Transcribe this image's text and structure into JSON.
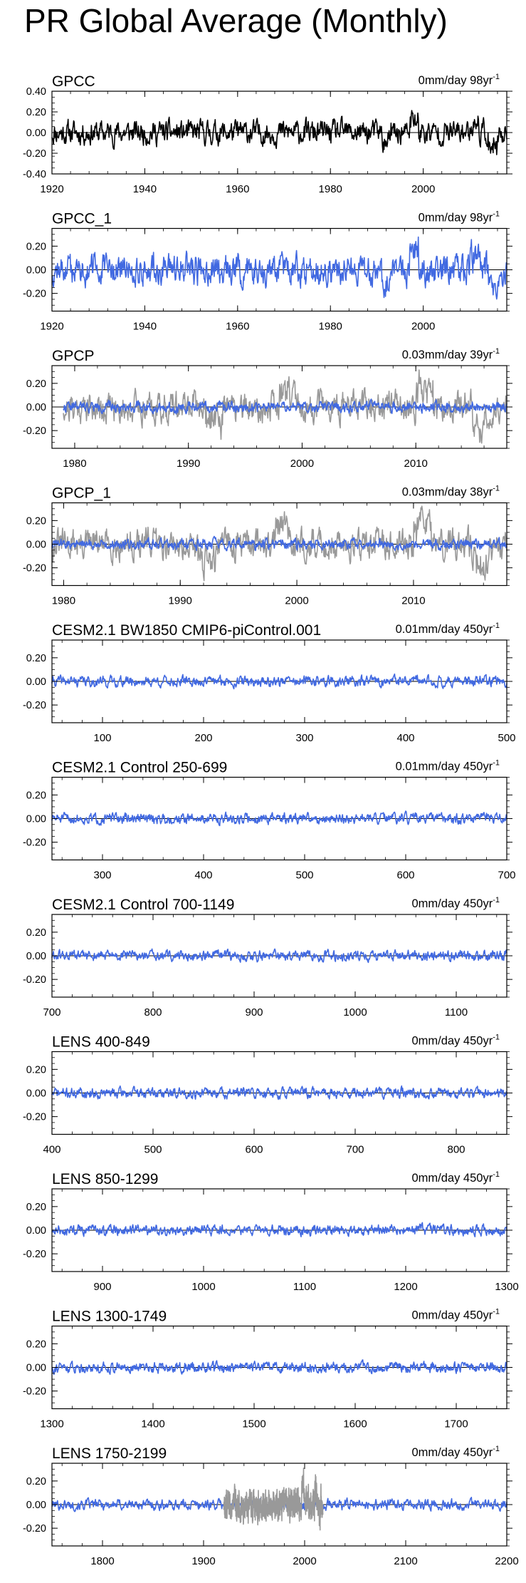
{
  "page": {
    "title": "PR Global Average (Monthly)"
  },
  "colors": {
    "obs": "#000000",
    "model": "#4169E1",
    "obs_overlay": "#999999",
    "frame": "#000000"
  },
  "chart_data": [
    {
      "type": "line",
      "title": "GPCC",
      "stat": "0mm/day 98yr",
      "xlim": [
        1920,
        2018
      ],
      "xticks": [
        1920,
        1940,
        1960,
        1980,
        2000
      ],
      "ylim": [
        -0.4,
        0.4
      ],
      "yticks": [
        "0.40",
        "0.20",
        "0.00",
        "-0.20",
        "-0.40"
      ],
      "zero_line": true,
      "series": [
        {
          "color": "obs",
          "start": 1920,
          "end": 2018,
          "amp": 0.09,
          "seed": 11,
          "anomaly": [
            [
              2014,
              2016,
              -0.2
            ],
            [
              2010,
              2012,
              0.12
            ],
            [
              1997,
              1999,
              0.15
            ],
            [
              1991,
              1993,
              -0.1
            ]
          ]
        }
      ]
    },
    {
      "type": "line",
      "title": "GPCC_1",
      "stat": "0mm/day 98yr",
      "xlim": [
        1920,
        2018
      ],
      "xticks": [
        1920,
        1940,
        1960,
        1980,
        2000
      ],
      "ylim": [
        -0.35,
        0.35
      ],
      "yticks": [
        "0.20",
        "0.00",
        "-0.20"
      ],
      "zero_line": true,
      "series": [
        {
          "color": "model",
          "start": 1920,
          "end": 2018,
          "amp": 0.1,
          "seed": 12,
          "anomaly": [
            [
              2014,
              2016,
              -0.22
            ],
            [
              2010,
              2012,
              0.14
            ],
            [
              1997,
              1999,
              0.17
            ],
            [
              1991,
              1993,
              -0.12
            ]
          ]
        }
      ]
    },
    {
      "type": "line",
      "title": "GPCP",
      "stat": "0.03mm/day 39yr",
      "xlim": [
        1978,
        2018
      ],
      "xticks": [
        1980,
        1990,
        2000,
        2010
      ],
      "ylim": [
        -0.35,
        0.35
      ],
      "yticks": [
        "0.20",
        "0.00",
        "-0.20"
      ],
      "zero_line": true,
      "series": [
        {
          "color": "obs_overlay",
          "start": 1979,
          "end": 2018,
          "amp": 0.1,
          "seed": 21,
          "anomaly": [
            [
              1998,
              1999.5,
              0.18
            ],
            [
              2010,
              2011.5,
              0.2
            ],
            [
              1991.5,
              1993,
              -0.15
            ],
            [
              2015,
              2016.5,
              -0.18
            ]
          ]
        },
        {
          "color": "model",
          "start": 1979,
          "end": 2018,
          "amp": 0.035,
          "seed": 22,
          "anomaly": []
        }
      ]
    },
    {
      "type": "line",
      "title": "GPCP_1",
      "stat": "0.03mm/day 38yr",
      "xlim": [
        1979,
        2018
      ],
      "xticks": [
        1980,
        1990,
        2000,
        2010
      ],
      "ylim": [
        -0.35,
        0.35
      ],
      "yticks": [
        "0.20",
        "0.00",
        "-0.20"
      ],
      "zero_line": true,
      "series": [
        {
          "color": "obs_overlay",
          "start": 1979,
          "end": 2018,
          "amp": 0.1,
          "seed": 31,
          "anomaly": [
            [
              1998,
              1999.5,
              0.18
            ],
            [
              2010,
              2011.5,
              0.22
            ],
            [
              1991.5,
              1993,
              -0.15
            ],
            [
              2015,
              2016.5,
              -0.18
            ]
          ]
        },
        {
          "color": "model",
          "start": 1979,
          "end": 2018,
          "amp": 0.035,
          "seed": 32,
          "anomaly": []
        }
      ]
    },
    {
      "type": "line",
      "title": "CESM2.1 BW1850 CMIP6-piControl.001",
      "stat": "0.01mm/day 450yr",
      "xlim": [
        50,
        500
      ],
      "xticks": [
        100,
        200,
        300,
        400,
        500
      ],
      "ylim": [
        -0.35,
        0.35
      ],
      "yticks": [
        "0.20",
        "0.00",
        "-0.20"
      ],
      "zero_line": true,
      "series": [
        {
          "color": "model",
          "start": 50,
          "end": 500,
          "amp": 0.035,
          "seed": 41,
          "anomaly": []
        }
      ]
    },
    {
      "type": "line",
      "title": "CESM2.1 Control 250-699",
      "stat": "0.01mm/day 450yr",
      "xlim": [
        250,
        700
      ],
      "xticks": [
        300,
        400,
        500,
        600,
        700
      ],
      "ylim": [
        -0.35,
        0.35
      ],
      "yticks": [
        "0.20",
        "0.00",
        "-0.20"
      ],
      "zero_line": true,
      "series": [
        {
          "color": "model",
          "start": 250,
          "end": 700,
          "amp": 0.035,
          "seed": 51,
          "anomaly": []
        }
      ]
    },
    {
      "type": "line",
      "title": "CESM2.1 Control 700-1149",
      "stat": "0mm/day 450yr",
      "xlim": [
        700,
        1150
      ],
      "xticks": [
        700,
        800,
        900,
        1000,
        1100
      ],
      "ylim": [
        -0.35,
        0.35
      ],
      "yticks": [
        "0.20",
        "0.00",
        "-0.20"
      ],
      "zero_line": true,
      "series": [
        {
          "color": "model",
          "start": 700,
          "end": 1150,
          "amp": 0.035,
          "seed": 61,
          "anomaly": []
        }
      ]
    },
    {
      "type": "line",
      "title": "LENS 400-849",
      "stat": "0mm/day 450yr",
      "xlim": [
        400,
        850
      ],
      "xticks": [
        400,
        500,
        600,
        700,
        800
      ],
      "ylim": [
        -0.35,
        0.35
      ],
      "yticks": [
        "0.20",
        "0.00",
        "-0.20"
      ],
      "zero_line": true,
      "series": [
        {
          "color": "model",
          "start": 400,
          "end": 850,
          "amp": 0.035,
          "seed": 71,
          "anomaly": []
        }
      ]
    },
    {
      "type": "line",
      "title": "LENS 850-1299",
      "stat": "0mm/day 450yr",
      "xlim": [
        850,
        1300
      ],
      "xticks": [
        900,
        1000,
        1100,
        1200,
        1300
      ],
      "ylim": [
        -0.35,
        0.35
      ],
      "yticks": [
        "0.20",
        "0.00",
        "-0.20"
      ],
      "zero_line": true,
      "series": [
        {
          "color": "model",
          "start": 850,
          "end": 1300,
          "amp": 0.035,
          "seed": 81,
          "anomaly": []
        }
      ]
    },
    {
      "type": "line",
      "title": "LENS 1300-1749",
      "stat": "0mm/day 450yr",
      "xlim": [
        1300,
        1750
      ],
      "xticks": [
        1300,
        1400,
        1500,
        1600,
        1700
      ],
      "ylim": [
        -0.35,
        0.35
      ],
      "yticks": [
        "0.20",
        "0.00",
        "-0.20"
      ],
      "zero_line": true,
      "series": [
        {
          "color": "model",
          "start": 1300,
          "end": 1750,
          "amp": 0.035,
          "seed": 91,
          "anomaly": []
        }
      ]
    },
    {
      "type": "line",
      "title": "LENS 1750-2199",
      "stat": "0mm/day 450yr",
      "xlim": [
        1750,
        2200
      ],
      "xticks": [
        1800,
        1900,
        2000,
        2100,
        2200
      ],
      "ylim": [
        -0.35,
        0.35
      ],
      "yticks": [
        "0.20",
        "0.00",
        "-0.20"
      ],
      "zero_line": true,
      "series": [
        {
          "color": "model",
          "start": 1750,
          "end": 2200,
          "amp": 0.035,
          "seed": 101,
          "anomaly": []
        },
        {
          "color": "obs_overlay",
          "start": 1920,
          "end": 2018,
          "amp": 0.1,
          "seed": 102,
          "anomaly": [
            [
              1997,
              1999,
              0.15
            ],
            [
              2010,
              2012,
              0.12
            ],
            [
              2014,
              2016,
              -0.18
            ]
          ]
        }
      ]
    }
  ]
}
